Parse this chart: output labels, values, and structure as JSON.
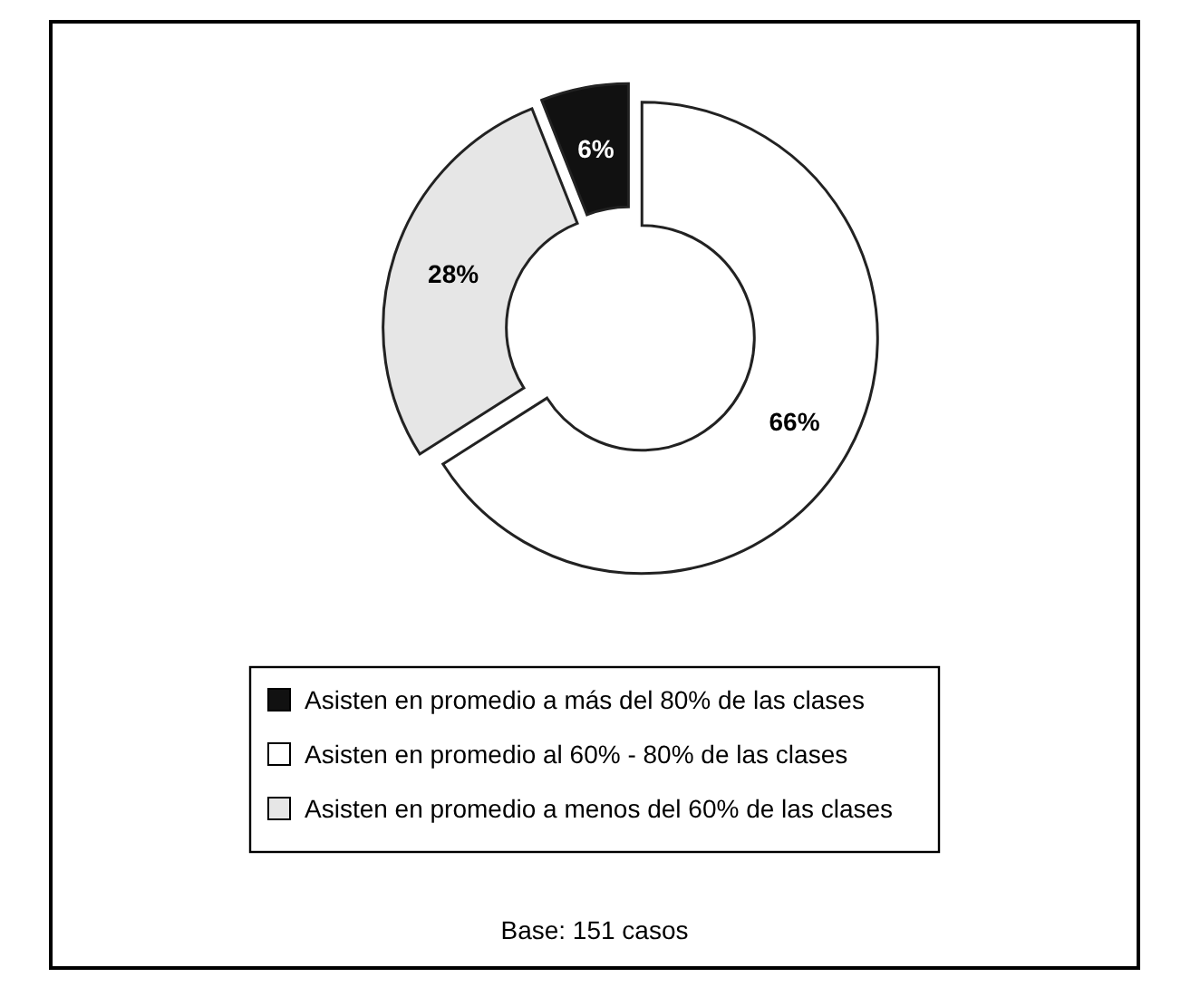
{
  "chart_data": {
    "type": "donut",
    "categories": [
      "Asisten en promedio a más del 80% de las clases",
      "Asisten en promedio al 60% - 80% de las clases",
      "Asisten en promedio a menos del 60% de las clases"
    ],
    "values": [
      6,
      66,
      28
    ],
    "colors": [
      "#111111",
      "#ffffff",
      "#e6e6e6"
    ],
    "value_labels": [
      "6%",
      "66%",
      "28%"
    ],
    "legend": "bottom",
    "annotations": [
      "Base: 151 casos"
    ]
  }
}
